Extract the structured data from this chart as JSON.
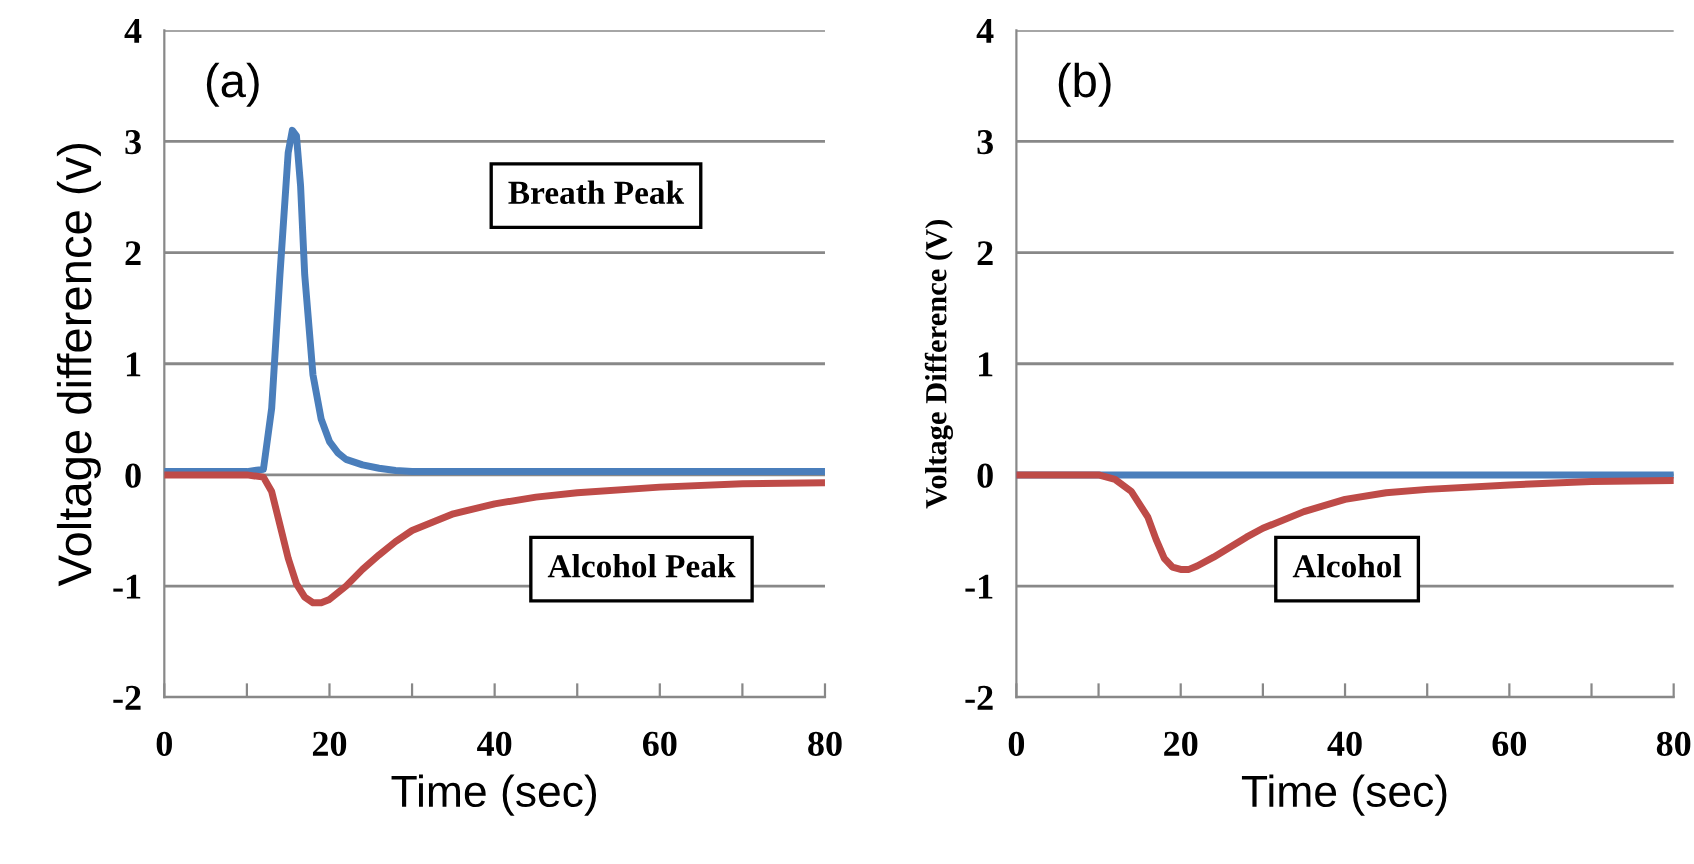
{
  "chart_data": [
    {
      "type": "line",
      "ylabel": "Voltage difference (v)",
      "xlabel": "Time (sec)",
      "annotations": [
        "(a)",
        "Breath Peak",
        "Alcohol Peak"
      ],
      "xlim": [
        0,
        80
      ],
      "ylim": [
        -2,
        4
      ],
      "xticks": [
        0,
        {
          "value": 10,
          "label": null
        },
        20,
        {
          "value": 30,
          "label": null
        },
        40,
        {
          "value": 50,
          "label": null
        },
        60,
        {
          "value": 70,
          "label": null
        },
        80
      ],
      "yticks": [
        -2,
        -1,
        0,
        1,
        2,
        3,
        4
      ],
      "grid": "y",
      "legend": false,
      "series": [
        {
          "color": "#4a7ebb",
          "x": [
            0,
            10,
            12,
            13,
            14,
            15,
            15.5,
            16,
            16.5,
            17,
            18,
            19,
            20,
            21,
            22,
            24,
            26,
            28,
            30,
            35,
            40,
            50,
            60,
            70,
            80
          ],
          "values": [
            0.03,
            0.03,
            0.05,
            0.6,
            1.8,
            2.9,
            3.1,
            3.05,
            2.6,
            1.8,
            0.9,
            0.5,
            0.3,
            0.2,
            0.14,
            0.09,
            0.06,
            0.04,
            0.03,
            0.03,
            0.03,
            0.03,
            0.03,
            0.03,
            0.03
          ]
        },
        {
          "color": "#be4b48",
          "x": [
            0,
            8,
            10,
            12,
            13,
            14,
            15,
            16,
            17,
            18,
            19,
            20,
            22,
            24,
            26,
            28,
            30,
            35,
            40,
            45,
            50,
            60,
            70,
            80
          ],
          "values": [
            0,
            0,
            0,
            -0.02,
            -0.15,
            -0.45,
            -0.75,
            -0.98,
            -1.1,
            -1.15,
            -1.15,
            -1.12,
            -1.0,
            -0.85,
            -0.72,
            -0.6,
            -0.5,
            -0.35,
            -0.26,
            -0.2,
            -0.16,
            -0.11,
            -0.08,
            -0.07
          ]
        }
      ]
    },
    {
      "type": "line",
      "ylabel": "Voltage Difference (V)",
      "xlabel": "Time (sec)",
      "annotations": [
        "(b)",
        "Alcohol"
      ],
      "xlim": [
        0,
        80
      ],
      "ylim": [
        -2,
        4
      ],
      "xticks": [
        0,
        {
          "value": 10,
          "label": null
        },
        20,
        {
          "value": 30,
          "label": null
        },
        40,
        {
          "value": 50,
          "label": null
        },
        60,
        {
          "value": 70,
          "label": null
        },
        80
      ],
      "yticks": [
        -2,
        -1,
        0,
        1,
        2,
        3,
        4
      ],
      "grid": "y",
      "legend": false,
      "series": [
        {
          "color": "#4a7ebb",
          "x": [
            0,
            20,
            40,
            60,
            80
          ],
          "values": [
            0,
            0,
            0,
            0,
            0
          ]
        },
        {
          "color": "#be4b48",
          "x": [
            0,
            8,
            10,
            12,
            14,
            16,
            17,
            18,
            19,
            20,
            21,
            22,
            24,
            26,
            28,
            30,
            35,
            40,
            45,
            50,
            60,
            70,
            80
          ],
          "values": [
            0,
            0,
            0,
            -0.04,
            -0.15,
            -0.38,
            -0.58,
            -0.75,
            -0.83,
            -0.85,
            -0.85,
            -0.82,
            -0.74,
            -0.65,
            -0.56,
            -0.48,
            -0.33,
            -0.22,
            -0.16,
            -0.13,
            -0.09,
            -0.06,
            -0.05
          ]
        }
      ]
    }
  ]
}
